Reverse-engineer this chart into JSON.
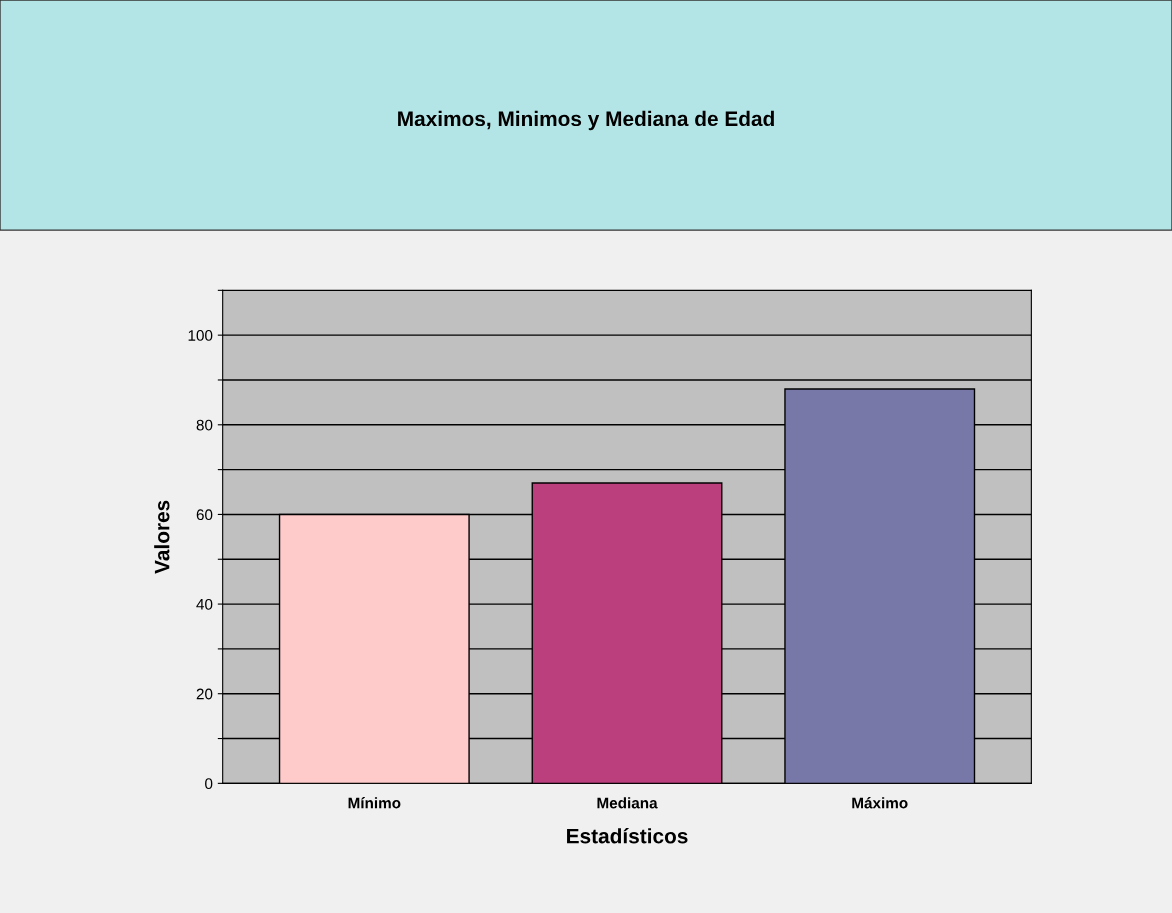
{
  "chart_data": {
    "type": "bar",
    "title": "Maximos, Minimos y Mediana de Edad",
    "xlabel": "Estadísticos",
    "ylabel": "Valores",
    "categories": [
      "Mínimo",
      "Mediana",
      "Máximo"
    ],
    "values": [
      60,
      67,
      88
    ],
    "colors": [
      "#ffcaca",
      "#bb3e7d",
      "#7878a8"
    ],
    "ylim": [
      0,
      110
    ],
    "yticks": [
      0,
      {
        "value": 10,
        "label": null
      },
      20,
      {
        "value": 30,
        "label": null
      },
      40,
      {
        "value": 50,
        "label": null
      },
      60,
      {
        "value": 70,
        "label": null
      },
      80,
      {
        "value": 90,
        "label": null
      },
      100,
      {
        "value": 110,
        "label": null
      }
    ],
    "grid": "y",
    "legend": false
  }
}
